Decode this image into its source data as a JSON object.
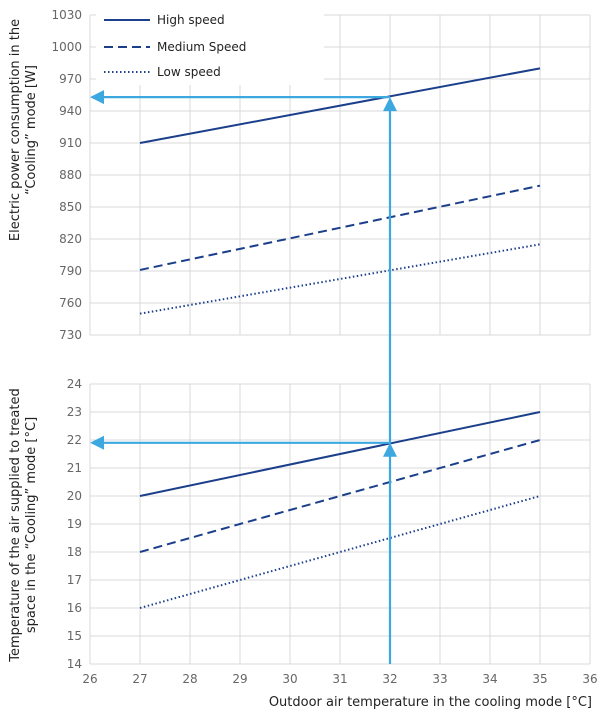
{
  "chart_data": [
    {
      "type": "line",
      "panel": "top",
      "ylabel_line1": "Electric power consumption in the",
      "ylabel_line2": "“Cooling” mode [W]",
      "xlim": [
        26,
        36
      ],
      "ylim": [
        730,
        1030
      ],
      "yticks": [
        730,
        760,
        790,
        820,
        850,
        880,
        910,
        940,
        970,
        1000,
        1030
      ],
      "grid": true,
      "legend_position": "top-left",
      "series": [
        {
          "name": "High speed",
          "style": "solid",
          "x": [
            27,
            35
          ],
          "y": [
            910,
            980
          ]
        },
        {
          "name": "Medium Speed",
          "style": "dashed",
          "x": [
            27,
            35
          ],
          "y": [
            791,
            870
          ]
        },
        {
          "name": "Low speed",
          "style": "dotted",
          "x": [
            27,
            35
          ],
          "y": [
            750,
            815
          ]
        }
      ],
      "annotations": {
        "x_value": 32,
        "read_value": 953,
        "arrow_color": "#3da7e0"
      }
    },
    {
      "type": "line",
      "panel": "bottom",
      "ylabel_line1": "Temperature of the air supplied to treated",
      "ylabel_line2": "space in the “Cooling” mode [°C]",
      "xlabel": "Outdoor air temperature in the cooling mode [°C]",
      "xlim": [
        26,
        36
      ],
      "xticks": [
        26,
        27,
        28,
        29,
        30,
        31,
        32,
        33,
        34,
        35,
        36
      ],
      "ylim": [
        14,
        24
      ],
      "yticks": [
        14,
        15,
        16,
        17,
        18,
        19,
        20,
        21,
        22,
        23,
        24
      ],
      "grid": true,
      "series": [
        {
          "style": "solid",
          "x": [
            27,
            35
          ],
          "y": [
            20,
            23
          ]
        },
        {
          "style": "dashed",
          "x": [
            27,
            35
          ],
          "y": [
            18,
            22
          ]
        },
        {
          "style": "dotted",
          "x": [
            27,
            35
          ],
          "y": [
            16,
            20
          ]
        }
      ],
      "annotations": {
        "x_value": 32,
        "read_value": 21.9,
        "arrow_color": "#3da7e0"
      }
    }
  ],
  "colors": {
    "series": "#1b3f8b",
    "arrow": "#3da7e0",
    "grid": "#d9d9d9",
    "tick_text": "#666666"
  }
}
